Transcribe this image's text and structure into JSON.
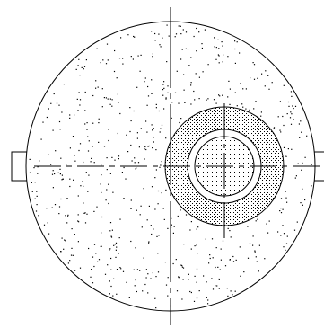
{
  "diagram": {
    "line_color": "#000000",
    "background_color": "#ffffff",
    "fill_pattern": "stipple",
    "components": [
      "outer-shell",
      "left-nozzle",
      "right-nozzle",
      "eccentric-hatched-ring",
      "inner-tube-outer-wall",
      "inner-tube-inner-wall",
      "vertical-centerline",
      "horizontal-centerline",
      "eccentric-vertical-centerline"
    ]
  }
}
